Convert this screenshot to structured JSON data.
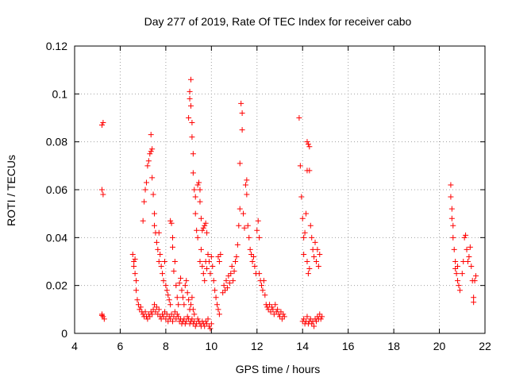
{
  "chart_data": {
    "type": "scatter",
    "title": "Day 277 of 2019, Rate Of TEC Index for receiver cabo",
    "xlabel": "GPS time / hours",
    "ylabel": "ROTI / TECUs",
    "xlim": [
      4,
      22
    ],
    "ylim": [
      0,
      0.12
    ],
    "x_ticks": [
      4,
      6,
      8,
      10,
      12,
      14,
      16,
      18,
      20,
      22
    ],
    "y_ticks": [
      0,
      0.02,
      0.04,
      0.06,
      0.08,
      0.1,
      0.12
    ],
    "x_tick_labels": [
      "4",
      "6",
      "8",
      "10",
      "12",
      "14",
      "16",
      "18",
      "20",
      "22"
    ],
    "y_tick_labels": [
      "0",
      "0.02",
      "0.04",
      "0.06",
      "0.08",
      "0.1",
      "0.12"
    ],
    "grid": true,
    "marker": "+",
    "marker_color": "#ff0000",
    "series": [
      {
        "name": "ROTI",
        "points": [
          [
            5.2,
            0.087
          ],
          [
            5.25,
            0.088
          ],
          [
            5.2,
            0.06
          ],
          [
            5.25,
            0.058
          ],
          [
            5.2,
            0.008
          ],
          [
            5.25,
            0.007
          ],
          [
            5.3,
            0.006
          ],
          [
            5.2,
            0.0075
          ],
          [
            6.55,
            0.033
          ],
          [
            6.6,
            0.03
          ],
          [
            6.6,
            0.028
          ],
          [
            6.65,
            0.025
          ],
          [
            6.65,
            0.031
          ],
          [
            6.7,
            0.022
          ],
          [
            6.7,
            0.018
          ],
          [
            6.75,
            0.014
          ],
          [
            6.8,
            0.012
          ],
          [
            6.85,
            0.01
          ],
          [
            6.9,
            0.011
          ],
          [
            6.95,
            0.009
          ],
          [
            7.0,
            0.008
          ],
          [
            7.05,
            0.007
          ],
          [
            7.1,
            0.009
          ],
          [
            7.15,
            0.007
          ],
          [
            7.2,
            0.006
          ],
          [
            7.25,
            0.008
          ],
          [
            7.3,
            0.007
          ],
          [
            7.35,
            0.009
          ],
          [
            7.4,
            0.008
          ],
          [
            7.45,
            0.01
          ],
          [
            7.5,
            0.012
          ],
          [
            7.55,
            0.009
          ],
          [
            7.6,
            0.011
          ],
          [
            7.65,
            0.008
          ],
          [
            7.7,
            0.01
          ],
          [
            7.75,
            0.007
          ],
          [
            7.8,
            0.006
          ],
          [
            7.85,
            0.008
          ],
          [
            7.9,
            0.007
          ],
          [
            7.95,
            0.009
          ],
          [
            8.0,
            0.006
          ],
          [
            8.05,
            0.008
          ],
          [
            8.1,
            0.005
          ],
          [
            8.15,
            0.007
          ],
          [
            8.2,
            0.006
          ],
          [
            8.25,
            0.008
          ],
          [
            8.3,
            0.005
          ],
          [
            8.35,
            0.007
          ],
          [
            8.4,
            0.009
          ],
          [
            8.45,
            0.006
          ],
          [
            8.5,
            0.008
          ],
          [
            8.55,
            0.007
          ],
          [
            8.6,
            0.005
          ],
          [
            8.65,
            0.006
          ],
          [
            8.7,
            0.004
          ],
          [
            8.75,
            0.005
          ],
          [
            8.8,
            0.006
          ],
          [
            8.85,
            0.004
          ],
          [
            8.9,
            0.005
          ],
          [
            8.95,
            0.007
          ],
          [
            9.0,
            0.006
          ],
          [
            9.05,
            0.004
          ],
          [
            9.1,
            0.005
          ],
          [
            9.15,
            0.006
          ],
          [
            9.2,
            0.004
          ],
          [
            9.25,
            0.005
          ],
          [
            9.3,
            0.003
          ],
          [
            9.35,
            0.004
          ],
          [
            9.4,
            0.006
          ],
          [
            9.45,
            0.005
          ],
          [
            9.5,
            0.004
          ],
          [
            9.55,
            0.003
          ],
          [
            9.6,
            0.005
          ],
          [
            9.65,
            0.004
          ],
          [
            9.7,
            0.003
          ],
          [
            9.75,
            0.005
          ],
          [
            9.8,
            0.004
          ],
          [
            9.85,
            0.006
          ],
          [
            9.9,
            0.003
          ],
          [
            9.95,
            0.002
          ],
          [
            10.0,
            0.004
          ],
          [
            7.0,
            0.047
          ],
          [
            7.05,
            0.055
          ],
          [
            7.1,
            0.06
          ],
          [
            7.15,
            0.063
          ],
          [
            7.2,
            0.07
          ],
          [
            7.25,
            0.072
          ],
          [
            7.3,
            0.075
          ],
          [
            7.35,
            0.083
          ],
          [
            7.35,
            0.076
          ],
          [
            7.4,
            0.077
          ],
          [
            7.4,
            0.065
          ],
          [
            7.45,
            0.058
          ],
          [
            7.5,
            0.05
          ],
          [
            7.5,
            0.045
          ],
          [
            7.55,
            0.042
          ],
          [
            7.6,
            0.038
          ],
          [
            7.65,
            0.035
          ],
          [
            7.7,
            0.03
          ],
          [
            7.7,
            0.042
          ],
          [
            7.75,
            0.033
          ],
          [
            7.8,
            0.028
          ],
          [
            7.85,
            0.025
          ],
          [
            7.9,
            0.022
          ],
          [
            7.95,
            0.03
          ],
          [
            8.0,
            0.02
          ],
          [
            8.05,
            0.018
          ],
          [
            8.1,
            0.016
          ],
          [
            8.15,
            0.014
          ],
          [
            8.2,
            0.012
          ],
          [
            8.2,
            0.047
          ],
          [
            8.25,
            0.046
          ],
          [
            8.3,
            0.036
          ],
          [
            8.3,
            0.04
          ],
          [
            8.35,
            0.026
          ],
          [
            8.4,
            0.03
          ],
          [
            8.45,
            0.02
          ],
          [
            8.5,
            0.015
          ],
          [
            8.55,
            0.012
          ],
          [
            8.6,
            0.021
          ],
          [
            8.65,
            0.023
          ],
          [
            8.7,
            0.018
          ],
          [
            8.75,
            0.015
          ],
          [
            8.8,
            0.012
          ],
          [
            8.85,
            0.02
          ],
          [
            8.9,
            0.022
          ],
          [
            8.95,
            0.017
          ],
          [
            9.0,
            0.014
          ],
          [
            9.05,
            0.01
          ],
          [
            9.1,
            0.012
          ],
          [
            9.15,
            0.015
          ],
          [
            9.2,
            0.01
          ],
          [
            9.25,
            0.008
          ],
          [
            9.0,
            0.09
          ],
          [
            9.05,
            0.098
          ],
          [
            9.05,
            0.101
          ],
          [
            9.1,
            0.106
          ],
          [
            9.1,
            0.095
          ],
          [
            9.15,
            0.088
          ],
          [
            9.15,
            0.082
          ],
          [
            9.2,
            0.075
          ],
          [
            9.2,
            0.067
          ],
          [
            9.25,
            0.06
          ],
          [
            9.3,
            0.057
          ],
          [
            9.3,
            0.05
          ],
          [
            9.35,
            0.043
          ],
          [
            9.4,
            0.04
          ],
          [
            9.4,
            0.062
          ],
          [
            9.45,
            0.063
          ],
          [
            9.5,
            0.06
          ],
          [
            9.5,
            0.055
          ],
          [
            9.55,
            0.048
          ],
          [
            9.6,
            0.043
          ],
          [
            9.65,
            0.044
          ],
          [
            9.7,
            0.045
          ],
          [
            9.75,
            0.046
          ],
          [
            9.8,
            0.042
          ],
          [
            9.5,
            0.03
          ],
          [
            9.55,
            0.035
          ],
          [
            9.6,
            0.028
          ],
          [
            9.65,
            0.025
          ],
          [
            9.7,
            0.022
          ],
          [
            9.75,
            0.03
          ],
          [
            9.8,
            0.027
          ],
          [
            9.85,
            0.033
          ],
          [
            9.9,
            0.03
          ],
          [
            9.95,
            0.025
          ],
          [
            10.0,
            0.032
          ],
          [
            10.05,
            0.028
          ],
          [
            10.1,
            0.022
          ],
          [
            10.15,
            0.018
          ],
          [
            10.2,
            0.015
          ],
          [
            10.25,
            0.012
          ],
          [
            10.3,
            0.01
          ],
          [
            10.35,
            0.008
          ],
          [
            10.3,
            0.032
          ],
          [
            10.35,
            0.03
          ],
          [
            10.4,
            0.033
          ],
          [
            10.5,
            0.017
          ],
          [
            10.55,
            0.02
          ],
          [
            10.6,
            0.018
          ],
          [
            10.65,
            0.022
          ],
          [
            10.7,
            0.019
          ],
          [
            10.75,
            0.024
          ],
          [
            10.8,
            0.021
          ],
          [
            10.85,
            0.025
          ],
          [
            10.9,
            0.028
          ],
          [
            10.95,
            0.022
          ],
          [
            11.0,
            0.026
          ],
          [
            11.05,
            0.03
          ],
          [
            11.1,
            0.032
          ],
          [
            11.15,
            0.037
          ],
          [
            11.2,
            0.045
          ],
          [
            11.25,
            0.052
          ],
          [
            11.25,
            0.071
          ],
          [
            11.3,
            0.096
          ],
          [
            11.35,
            0.092
          ],
          [
            11.35,
            0.085
          ],
          [
            11.4,
            0.05
          ],
          [
            11.45,
            0.044
          ],
          [
            11.5,
            0.062
          ],
          [
            11.55,
            0.064
          ],
          [
            11.55,
            0.058
          ],
          [
            11.6,
            0.045
          ],
          [
            11.65,
            0.04
          ],
          [
            11.7,
            0.035
          ],
          [
            11.75,
            0.033
          ],
          [
            11.8,
            0.03
          ],
          [
            11.85,
            0.032
          ],
          [
            11.9,
            0.028
          ],
          [
            11.95,
            0.025
          ],
          [
            12.0,
            0.043
          ],
          [
            12.05,
            0.047
          ],
          [
            12.1,
            0.04
          ],
          [
            12.1,
            0.025
          ],
          [
            12.15,
            0.022
          ],
          [
            12.2,
            0.02
          ],
          [
            12.25,
            0.018
          ],
          [
            12.3,
            0.022
          ],
          [
            12.35,
            0.016
          ],
          [
            12.4,
            0.012
          ],
          [
            12.45,
            0.011
          ],
          [
            12.5,
            0.01
          ],
          [
            12.55,
            0.012
          ],
          [
            12.6,
            0.009
          ],
          [
            12.65,
            0.011
          ],
          [
            12.7,
            0.01
          ],
          [
            12.75,
            0.008
          ],
          [
            12.8,
            0.012
          ],
          [
            12.85,
            0.009
          ],
          [
            12.9,
            0.01
          ],
          [
            12.95,
            0.008
          ],
          [
            13.0,
            0.007
          ],
          [
            13.05,
            0.009
          ],
          [
            13.1,
            0.006
          ],
          [
            13.15,
            0.008
          ],
          [
            13.2,
            0.007
          ],
          [
            13.85,
            0.09
          ],
          [
            13.9,
            0.07
          ],
          [
            13.95,
            0.057
          ],
          [
            14.0,
            0.048
          ],
          [
            14.05,
            0.04
          ],
          [
            14.05,
            0.033
          ],
          [
            14.1,
            0.042
          ],
          [
            14.15,
            0.05
          ],
          [
            14.2,
            0.08
          ],
          [
            14.2,
            0.068
          ],
          [
            14.25,
            0.079
          ],
          [
            14.3,
            0.078
          ],
          [
            14.3,
            0.068
          ],
          [
            14.35,
            0.045
          ],
          [
            14.4,
            0.04
          ],
          [
            14.45,
            0.035
          ],
          [
            14.5,
            0.032
          ],
          [
            14.55,
            0.038
          ],
          [
            14.6,
            0.03
          ],
          [
            14.65,
            0.035
          ],
          [
            14.7,
            0.028
          ],
          [
            14.75,
            0.033
          ],
          [
            14.25,
            0.025
          ],
          [
            14.2,
            0.03
          ],
          [
            14.3,
            0.027
          ],
          [
            14.0,
            0.005
          ],
          [
            14.05,
            0.006
          ],
          [
            14.1,
            0.004
          ],
          [
            14.15,
            0.005
          ],
          [
            14.2,
            0.007
          ],
          [
            14.25,
            0.004
          ],
          [
            14.3,
            0.005
          ],
          [
            14.35,
            0.006
          ],
          [
            14.4,
            0.004
          ],
          [
            14.45,
            0.005
          ],
          [
            14.5,
            0.003
          ],
          [
            14.55,
            0.006
          ],
          [
            14.6,
            0.005
          ],
          [
            14.65,
            0.007
          ],
          [
            14.7,
            0.006
          ],
          [
            14.75,
            0.008
          ],
          [
            14.8,
            0.006
          ],
          [
            14.85,
            0.007
          ],
          [
            20.5,
            0.062
          ],
          [
            20.5,
            0.057
          ],
          [
            20.55,
            0.052
          ],
          [
            20.55,
            0.048
          ],
          [
            20.6,
            0.045
          ],
          [
            20.6,
            0.04
          ],
          [
            20.65,
            0.035
          ],
          [
            20.7,
            0.03
          ],
          [
            20.7,
            0.027
          ],
          [
            20.75,
            0.025
          ],
          [
            20.8,
            0.022
          ],
          [
            20.8,
            0.028
          ],
          [
            20.85,
            0.02
          ],
          [
            20.9,
            0.018
          ],
          [
            21.0,
            0.025
          ],
          [
            21.05,
            0.03
          ],
          [
            21.1,
            0.04
          ],
          [
            21.15,
            0.041
          ],
          [
            21.2,
            0.035
          ],
          [
            21.25,
            0.03
          ],
          [
            21.3,
            0.032
          ],
          [
            21.35,
            0.036
          ],
          [
            21.4,
            0.028
          ],
          [
            21.45,
            0.022
          ],
          [
            21.5,
            0.015
          ],
          [
            21.5,
            0.013
          ],
          [
            21.55,
            0.022
          ],
          [
            21.6,
            0.024
          ]
        ]
      }
    ]
  }
}
